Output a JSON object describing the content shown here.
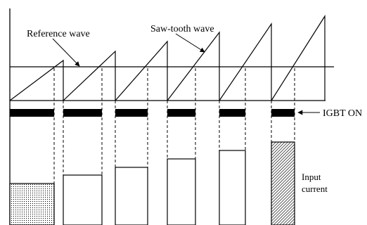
{
  "labels": {
    "reference_wave": "Reference wave",
    "sawtooth_wave": "Saw-tooth wave",
    "igbt_on": "IGBT ON",
    "input_current_line1": "Input",
    "input_current_line2": "current"
  },
  "colors": {
    "stroke": "#000000",
    "background": "#ffffff",
    "igbt_bar": "#000000"
  }
}
